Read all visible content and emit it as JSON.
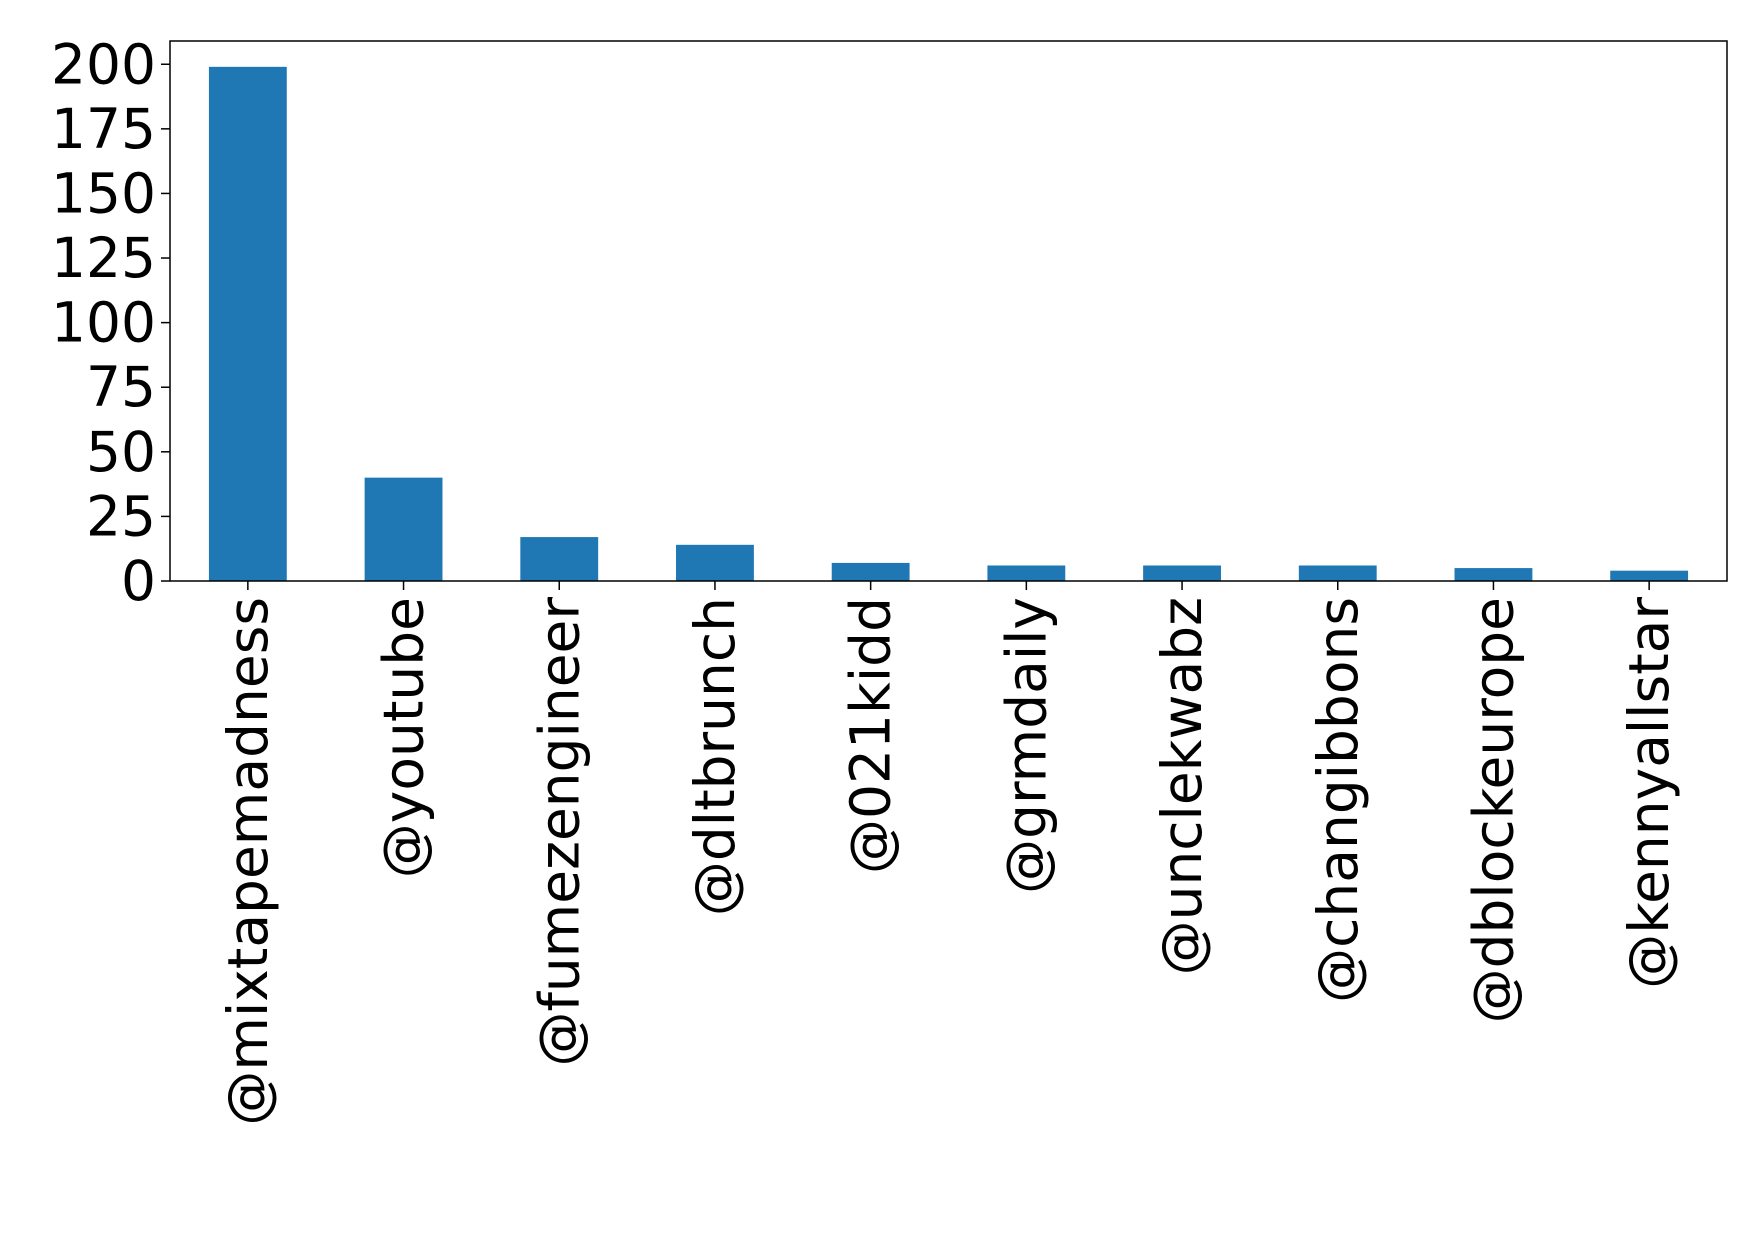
{
  "chart_data": {
    "type": "bar",
    "title": "",
    "xlabel": "",
    "ylabel": "",
    "categories": [
      "@mixtapemadness",
      "@youtube",
      "@fumezengineer",
      "@dltbrunch",
      "@021kidd",
      "@grmdaily",
      "@unclekwabz",
      "@changibbons",
      "@dblockeurope",
      "@kennyallstar"
    ],
    "values": [
      199,
      40,
      17,
      14,
      7,
      6,
      6,
      6,
      5,
      4
    ],
    "ylim": [
      0,
      209
    ],
    "yticks": [
      0,
      25,
      50,
      75,
      100,
      125,
      150,
      175,
      200
    ],
    "grid": false,
    "bar_color": "#1f77b4"
  }
}
